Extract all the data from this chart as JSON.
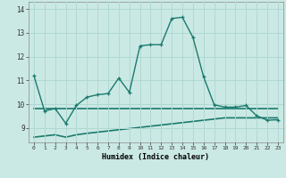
{
  "xlabel": "Humidex (Indice chaleur)",
  "background_color": "#cbe9e4",
  "grid_color": "#b0d8d2",
  "line_color": "#1a7a6e",
  "x_main": [
    0,
    1,
    2,
    3,
    4,
    5,
    6,
    7,
    8,
    9,
    10,
    11,
    12,
    13,
    14,
    15,
    16,
    17,
    18,
    19,
    20,
    21,
    22,
    23
  ],
  "y_main": [
    11.2,
    9.72,
    9.82,
    9.2,
    9.95,
    10.3,
    10.4,
    10.45,
    11.1,
    10.5,
    12.45,
    12.5,
    12.5,
    13.6,
    13.65,
    12.8,
    11.15,
    9.98,
    9.88,
    9.88,
    9.95,
    9.52,
    9.33,
    9.35
  ],
  "y_flat1": [
    9.82,
    9.82,
    9.82,
    9.82,
    9.82,
    9.82,
    9.82,
    9.82,
    9.82,
    9.82,
    9.82,
    9.82,
    9.82,
    9.82,
    9.82,
    9.82,
    9.82,
    9.82,
    9.82,
    9.82,
    9.82,
    9.82,
    9.82,
    9.82
  ],
  "y_flat2": [
    8.62,
    8.67,
    8.72,
    8.62,
    8.72,
    8.78,
    8.83,
    8.88,
    8.93,
    8.98,
    9.03,
    9.08,
    9.13,
    9.18,
    9.23,
    9.28,
    9.33,
    9.38,
    9.43,
    9.43,
    9.43,
    9.43,
    9.43,
    9.43
  ],
  "ylim": [
    8.4,
    14.3
  ],
  "xlim": [
    -0.5,
    23.5
  ],
  "yticks": [
    9,
    10,
    11,
    12,
    13,
    14
  ],
  "xticks": [
    0,
    1,
    2,
    3,
    4,
    5,
    6,
    7,
    8,
    9,
    10,
    11,
    12,
    13,
    14,
    15,
    16,
    17,
    18,
    19,
    20,
    21,
    22,
    23
  ]
}
